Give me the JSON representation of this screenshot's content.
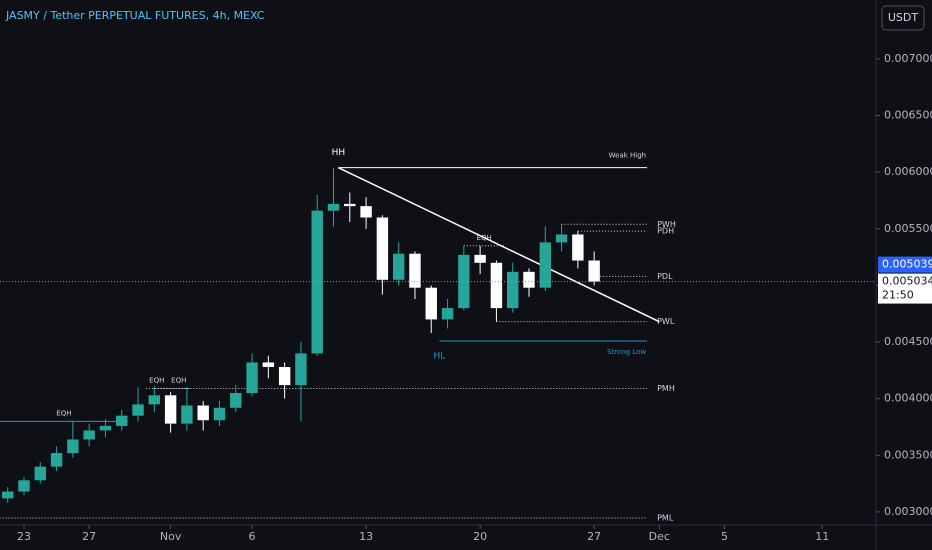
{
  "chart_data": {
    "type": "candlestick",
    "title": "JASMY / Tether PERPETUAL FUTURES, 4h, MEXC",
    "currency": "USDT",
    "x": [
      -1,
      0,
      1,
      2,
      3,
      4,
      5,
      6,
      7,
      8,
      9,
      10,
      11,
      12,
      13,
      14,
      15,
      16,
      17,
      18,
      19,
      20,
      21,
      22,
      23,
      24,
      25,
      26,
      27,
      28,
      29,
      30,
      31,
      32,
      33,
      34,
      35
    ],
    "open": [
      0.00312,
      0.00318,
      0.00328,
      0.0034,
      0.00352,
      0.00364,
      0.00372,
      0.00376,
      0.00385,
      0.00395,
      0.00403,
      0.00378,
      0.00394,
      0.00381,
      0.00392,
      0.00405,
      0.00432,
      0.00428,
      0.00412,
      0.0044,
      0.00566,
      0.00572,
      0.0057,
      0.0056,
      0.00505,
      0.00528,
      0.00498,
      0.0047,
      0.0048,
      0.00527,
      0.0052,
      0.0048,
      0.00512,
      0.00498,
      0.00538,
      0.00545,
      0.00522
    ],
    "high": [
      0.00322,
      0.00331,
      0.00344,
      0.00358,
      0.0038,
      0.00378,
      0.00382,
      0.0039,
      0.0041,
      0.00411,
      0.00406,
      0.0041,
      0.00398,
      0.00398,
      0.00412,
      0.0044,
      0.00438,
      0.00432,
      0.0045,
      0.0058,
      0.006035,
      0.00582,
      0.00578,
      0.00562,
      0.00538,
      0.0053,
      0.005,
      0.00488,
      0.00535,
      0.00535,
      0.00522,
      0.0052,
      0.00515,
      0.00552,
      0.00554,
      0.00548,
      0.0053
    ],
    "low": [
      0.00308,
      0.00315,
      0.00325,
      0.00336,
      0.00348,
      0.00358,
      0.00366,
      0.00372,
      0.0038,
      0.00388,
      0.0037,
      0.00372,
      0.00372,
      0.00376,
      0.00388,
      0.00402,
      0.00418,
      0.004,
      0.0038,
      0.00438,
      0.00552,
      0.00556,
      0.0055,
      0.00492,
      0.005,
      0.00488,
      0.00458,
      0.00462,
      0.00478,
      0.0051,
      0.00468,
      0.00476,
      0.0049,
      0.00495,
      0.0053,
      0.00515,
      0.005
    ],
    "close": [
      0.00318,
      0.00328,
      0.0034,
      0.00352,
      0.00364,
      0.00372,
      0.00376,
      0.00385,
      0.00395,
      0.00403,
      0.00378,
      0.00394,
      0.00381,
      0.00392,
      0.00405,
      0.00432,
      0.00428,
      0.00412,
      0.0044,
      0.00566,
      0.00572,
      0.0057,
      0.0056,
      0.00505,
      0.00528,
      0.00498,
      0.0047,
      0.0048,
      0.00527,
      0.0052,
      0.0048,
      0.00512,
      0.00498,
      0.00538,
      0.00545,
      0.00522,
      0.005034
    ],
    "up_color": "#26a69a",
    "down_color": "#ffffff",
    "ylim": [
      0.002885,
      0.00752
    ],
    "yticks": [
      {
        "value": 0.007,
        "label": "0.007000"
      },
      {
        "value": 0.0065,
        "label": "0.006500"
      },
      {
        "value": 0.006,
        "label": "0.006000"
      },
      {
        "value": 0.0055,
        "label": "0.005500"
      },
      {
        "value": 0.005,
        "label": "0.005000"
      },
      {
        "value": 0.0045,
        "label": "0.004500"
      },
      {
        "value": 0.004,
        "label": "0.004000"
      },
      {
        "value": 0.0035,
        "label": "0.003500"
      },
      {
        "value": 0.003,
        "label": "0.003000"
      }
    ],
    "xlim": [
      -1.473,
      52.24
    ],
    "xticks": [
      {
        "value": 0,
        "label": "23"
      },
      {
        "value": 4,
        "label": "27"
      },
      {
        "value": 9,
        "label": "Nov"
      },
      {
        "value": 14,
        "label": "6"
      },
      {
        "value": 21,
        "label": "13"
      },
      {
        "value": 28,
        "label": "20"
      },
      {
        "value": 35,
        "label": "27"
      },
      {
        "value": 39,
        "label": "Dec"
      },
      {
        "value": 43,
        "label": "5"
      },
      {
        "value": 49,
        "label": "11"
      }
    ],
    "levels": [
      {
        "label": "Weak High",
        "value": 0.00604,
        "from": 19.3,
        "to": 38.25,
        "style": "solid",
        "color": "#ffffff",
        "label_pos": "end-above",
        "start_label": "HH"
      },
      {
        "label": "PWH",
        "value": 0.00554,
        "from": 33,
        "to": 38.25,
        "style": "dotted",
        "color": "#d1d4dc",
        "label_pos": "end"
      },
      {
        "label": "PDH",
        "value": 0.00548,
        "from": 34,
        "to": 38.25,
        "style": "dotted",
        "color": "#d1d4dc",
        "label_pos": "end"
      },
      {
        "label": "PDL",
        "value": 0.00508,
        "from": 35,
        "to": 38.25,
        "style": "dotted",
        "color": "#d1d4dc",
        "label_pos": "end"
      },
      {
        "label": "PWL",
        "value": 0.00468,
        "from": 29,
        "to": 38.25,
        "style": "dotted",
        "color": "#d1d4dc",
        "label_pos": "end"
      },
      {
        "label": "Strong Low",
        "value": 0.00451,
        "from": 25.5,
        "to": 38.25,
        "style": "solid",
        "color": "#2196c8",
        "label_pos": "end-below",
        "start_label": "HL"
      },
      {
        "label": "PMH",
        "value": 0.00409,
        "from": 8,
        "to": 38.25,
        "style": "dotted",
        "color": "#d1d4dc",
        "label_pos": "end"
      },
      {
        "label": "PML",
        "value": 0.002947,
        "from": -1.5,
        "to": 38.25,
        "style": "dotted",
        "color": "#d1d4dc",
        "label_pos": "end"
      },
      {
        "label": "EQH",
        "value": 0.0038,
        "from": -1.5,
        "to": 6.4,
        "style": "solid",
        "color": "#2196c8",
        "label_pos": "center-above"
      },
      {
        "label": "EQH",
        "value": 0.00409,
        "from": 7.5,
        "to": 8.8,
        "style": "dotted",
        "color": "#d1d4dc",
        "label_pos": "center-above"
      },
      {
        "label": "EQH",
        "value": 0.00409,
        "from": 8.8,
        "to": 10.2,
        "style": "dotted",
        "color": "#d1d4dc",
        "label_pos": "center-above"
      },
      {
        "label": "EQH",
        "value": 0.00535,
        "from": 27,
        "to": 29.5,
        "style": "dotted",
        "color": "#d1d4dc",
        "label_pos": "center-above"
      }
    ],
    "trendline": {
      "x": [
        19.3,
        39
      ],
      "y": [
        0.00604,
        0.00468
      ],
      "color": "#ffffff"
    },
    "mark_price": 0.005039,
    "last_price": 0.005034,
    "countdown": "21:50"
  }
}
